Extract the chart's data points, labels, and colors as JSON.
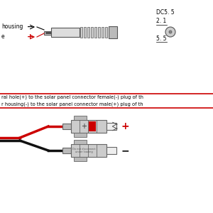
{
  "bg_color": "#ffffff",
  "housing_label": "housing",
  "e_label": "e",
  "minus_sym": "−",
  "plus_sym": "+",
  "dc_label": "DC5. 5",
  "dim1": "2. 1",
  "dim2": "5. 5",
  "mid_text1": "ral hole(+) to the solar panel connector female(-) plug of th",
  "mid_text2": "r housing(-) to the solar panel connector male(+) plug of th",
  "border_color": "#cc0000",
  "plus_color": "#cc0000",
  "red_wire": "#cc0000",
  "black_wire": "#111111",
  "connector_fill": "#cccccc",
  "connector_dark": "#888888",
  "connector_edge": "#666666",
  "barrel_fill": "#dddddd",
  "ridge_fill": "#cccccc",
  "grip_fill": "#bbbbbb"
}
